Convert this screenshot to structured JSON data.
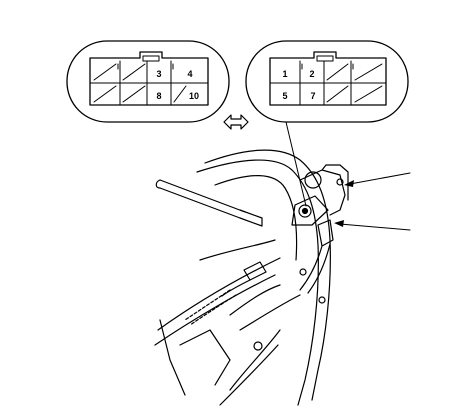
{
  "connector_left": {
    "pins": [
      {
        "num": "3",
        "row": 1,
        "col": 3
      },
      {
        "num": "4",
        "row": 1,
        "col": 4
      },
      {
        "num": "8",
        "row": 2,
        "col": 3
      },
      {
        "num": "10",
        "row": 2,
        "col": 4
      }
    ]
  },
  "connector_right": {
    "pins": [
      {
        "num": "1",
        "row": 1,
        "col": 1
      },
      {
        "num": "2",
        "row": 1,
        "col": 2
      },
      {
        "num": "5",
        "row": 2,
        "col": 1
      },
      {
        "num": "7",
        "row": 2,
        "col": 2
      }
    ]
  },
  "icons": {
    "view_arrow": "double-headed-arrow-icon"
  },
  "colors": {
    "ink": "#000000",
    "background": "#ffffff"
  }
}
